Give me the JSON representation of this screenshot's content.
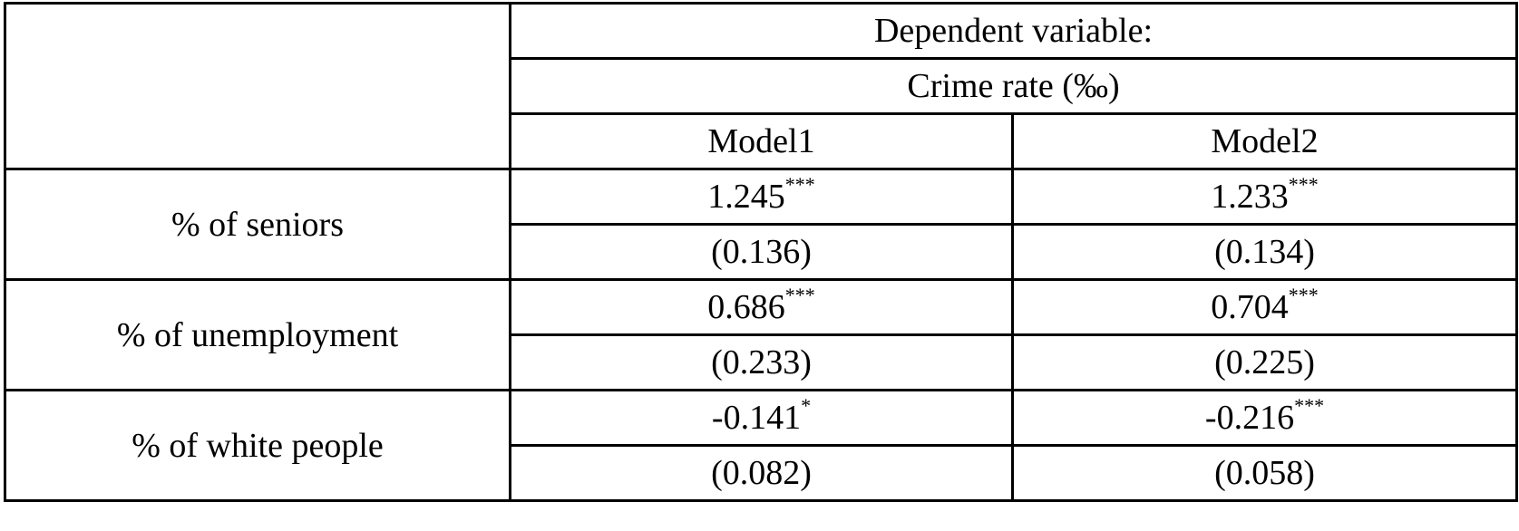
{
  "header": {
    "dependent_label": "Dependent variable:",
    "outcome_label": "Crime rate (‰)",
    "models": [
      "Model1",
      "Model2"
    ]
  },
  "rows": [
    {
      "label": "% of seniors",
      "model1": {
        "coef": "1.245",
        "stars": "***",
        "se": "(0.136)"
      },
      "model2": {
        "coef": "1.233",
        "stars": "***",
        "se": "(0.134)"
      }
    },
    {
      "label": "% of unemployment",
      "model1": {
        "coef": "0.686",
        "stars": "***",
        "se": "(0.233)"
      },
      "model2": {
        "coef": "0.704",
        "stars": "***",
        "se": "(0.225)"
      }
    },
    {
      "label": "% of white people",
      "model1": {
        "coef": "-0.141",
        "stars": "*",
        "se": "(0.082)"
      },
      "model2": {
        "coef": "-0.216",
        "stars": "***",
        "se": "(0.058)"
      }
    }
  ]
}
